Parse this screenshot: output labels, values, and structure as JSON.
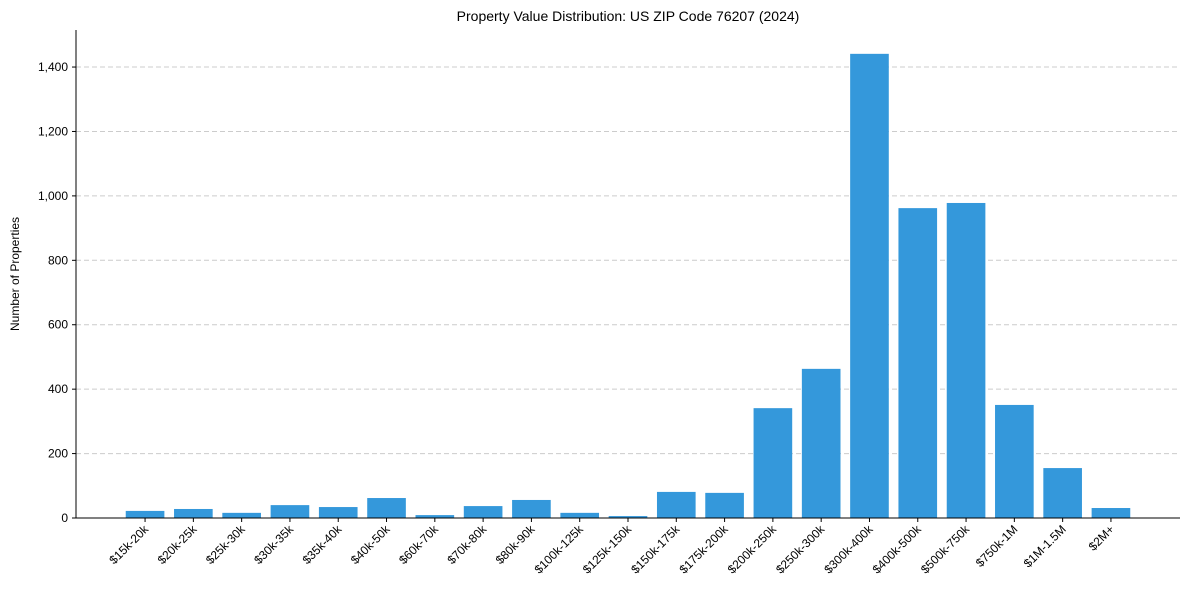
{
  "chart_data": {
    "type": "bar",
    "title": "Property Value Distribution: US ZIP Code 76207 (2024)",
    "xlabel": "",
    "ylabel": "Number of Properties",
    "categories": [
      "$15k-20k",
      "$20k-25k",
      "$25k-30k",
      "$30k-35k",
      "$35k-40k",
      "$40k-50k",
      "$60k-70k",
      "$70k-80k",
      "$80k-90k",
      "$100k-125k",
      "$125k-150k",
      "$150k-175k",
      "$175k-200k",
      "$200k-250k",
      "$250k-300k",
      "$300k-400k",
      "$400k-500k",
      "$500k-750k",
      "$750k-1M",
      "$1M-1.5M",
      "$2M+"
    ],
    "values": [
      22,
      28,
      16,
      40,
      34,
      62,
      9,
      37,
      56,
      16,
      6,
      81,
      78,
      341,
      463,
      1441,
      962,
      978,
      351,
      155,
      31
    ],
    "ylim": [
      0,
      1515
    ],
    "yticks": [
      0,
      200,
      400,
      600,
      800,
      1000,
      1200,
      1400
    ],
    "ytick_labels": [
      "0",
      "200",
      "400",
      "600",
      "800",
      "1,000",
      "1,200",
      "1,400"
    ],
    "grid": "y, dashed",
    "bar_color": "#3498db"
  }
}
